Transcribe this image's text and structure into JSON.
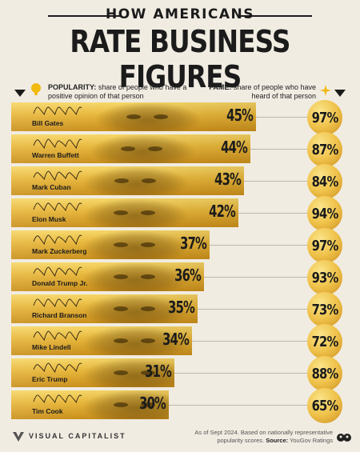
{
  "header": {
    "title_top": "HOW AMERICANS",
    "title_main": "RATE BUSINESS FIGURES"
  },
  "legend": {
    "popularity_label": "POPULARITY:",
    "popularity_desc": " share of people who have a positive opinion of that person",
    "fame_label": "FAME:",
    "fame_desc": " share of people who have heard of that person"
  },
  "chart_data": {
    "type": "bar",
    "title": "HOW AMERICANS RATE BUSINESS FIGURES",
    "categories": [
      "Bill Gates",
      "Warren Buffett",
      "Mark Cuban",
      "Elon Musk",
      "Mark Zuckerberg",
      "Donald Trump Jr.",
      "Richard Branson",
      "Mike Lindell",
      "Eric Trump",
      "Tim Cook"
    ],
    "series": [
      {
        "name": "POPULARITY",
        "values": [
          45,
          44,
          43,
          42,
          37,
          36,
          35,
          34,
          31,
          30
        ]
      },
      {
        "name": "FAME",
        "values": [
          97,
          87,
          84,
          94,
          97,
          93,
          73,
          72,
          88,
          65
        ]
      }
    ],
    "popularity_labels": [
      "45%",
      "44%",
      "43%",
      "42%",
      "37%",
      "36%",
      "35%",
      "34%",
      "31%",
      "30%"
    ],
    "fame_labels": [
      "97%",
      "87%",
      "84%",
      "94%",
      "97%",
      "93%",
      "73%",
      "72%",
      "88%",
      "65%"
    ],
    "unit": "%",
    "xlim": [
      0,
      50
    ]
  },
  "footer": {
    "brand": "VISUAL CAPITALIST",
    "note": "As of Sept 2024. Based on nationally representative popularity scores.",
    "source_label": "Source:",
    "source": " YouGov Ratings"
  },
  "colors": {
    "background": "#f1ece2",
    "gold": "#e6b53a",
    "text": "#1b1b1b"
  }
}
